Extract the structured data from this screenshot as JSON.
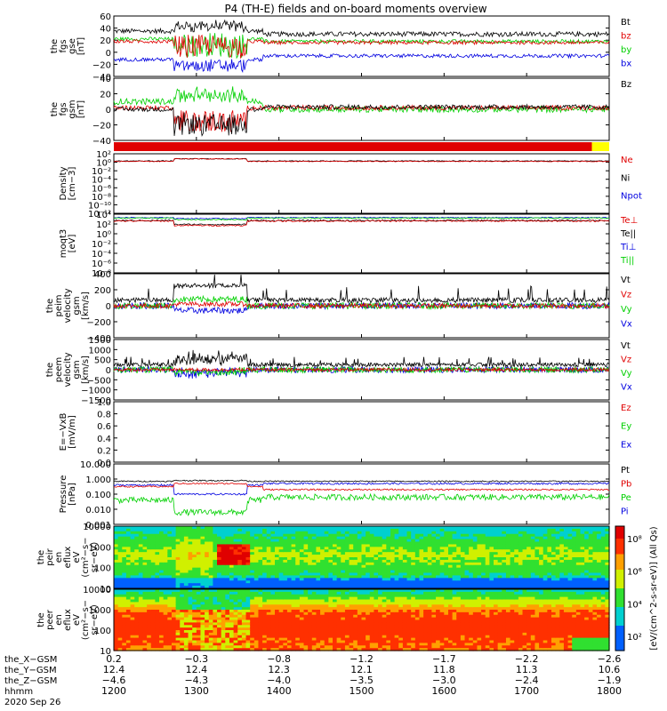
{
  "title": "P4 (TH-E) fields and on-board moments overview",
  "colors": {
    "black": "#000000",
    "red": "#e00000",
    "green": "#00d000",
    "blue": "#0000e0",
    "yellow": "#ffff00",
    "lime": "#3ce83c"
  },
  "chart_data": [
    {
      "type": "line",
      "panel": "fgs-gse",
      "ylabel": [
        "the",
        "fgs",
        "gse",
        "[nT]"
      ],
      "ylim": [
        -40,
        60
      ],
      "ticks": [
        "60",
        "40",
        "20",
        "0",
        "−20",
        "−40"
      ],
      "series": [
        {
          "name": "Bt",
          "color": "#000000"
        },
        {
          "name": "bz",
          "color": "#e00000"
        },
        {
          "name": "by",
          "color": "#00d000"
        },
        {
          "name": "bx",
          "color": "#0000e0"
        }
      ]
    },
    {
      "type": "line",
      "panel": "fgs-gsm",
      "ylabel": [
        "the",
        "fgs",
        "gsm",
        "[nT]"
      ],
      "ylim": [
        -40,
        40
      ],
      "ticks": [
        "40",
        "20",
        "0",
        "−20",
        "−40"
      ],
      "series": [
        {
          "name": "Bz",
          "color": "#000000"
        }
      ]
    },
    {
      "type": "line",
      "panel": "density",
      "ylabel": [
        "Density",
        "[cm−3]"
      ],
      "scale": "log",
      "ticks": [
        "10²",
        "10⁰",
        "10⁻²",
        "10⁻⁴",
        "10⁻⁶",
        "10⁻⁸",
        "10⁻¹⁰",
        "10⁻¹²"
      ],
      "series": [
        {
          "name": "Ne",
          "color": "#e00000"
        },
        {
          "name": "Ni",
          "color": "#000000"
        },
        {
          "name": "Npot",
          "color": "#0000e0"
        }
      ]
    },
    {
      "type": "line",
      "panel": "temperature",
      "ylabel": [
        "moqt3",
        "[eV]"
      ],
      "scale": "log",
      "ticks": [
        "10⁴",
        "10²",
        "10⁰",
        "10⁻²",
        "10⁻⁴",
        "10⁻⁶",
        "10⁻⁸"
      ],
      "series": [
        {
          "name": "Te⊥",
          "color": "#e00000"
        },
        {
          "name": "Te||",
          "color": "#000000"
        },
        {
          "name": "Ti⊥",
          "color": "#0000e0"
        },
        {
          "name": "Ti||",
          "color": "#00d000"
        }
      ]
    },
    {
      "type": "line",
      "panel": "peim-velocity",
      "ylabel": [
        "the",
        "peim",
        "velocity",
        "gsm",
        "[km/s]"
      ],
      "ylim": [
        -400,
        400
      ],
      "ticks": [
        "400",
        "200",
        "0",
        "−200",
        "−400"
      ],
      "series": [
        {
          "name": "Vt",
          "color": "#000000"
        },
        {
          "name": "Vz",
          "color": "#e00000"
        },
        {
          "name": "Vy",
          "color": "#00d000"
        },
        {
          "name": "Vx",
          "color": "#0000e0"
        }
      ]
    },
    {
      "type": "line",
      "panel": "peem-velocity",
      "ylabel": [
        "the",
        "peem",
        "velocity",
        "gsm",
        "[km/s]"
      ],
      "ylim": [
        -1500,
        1500
      ],
      "ticks": [
        "1500",
        "1000",
        "500",
        "0",
        "−500",
        "−1000",
        "−1500"
      ],
      "series": [
        {
          "name": "Vt",
          "color": "#000000"
        },
        {
          "name": "Vz",
          "color": "#e00000"
        },
        {
          "name": "Vy",
          "color": "#00d000"
        },
        {
          "name": "Vx",
          "color": "#0000e0"
        }
      ]
    },
    {
      "type": "line",
      "panel": "efield",
      "ylabel": [
        "E=−VxB",
        "[mV/m]"
      ],
      "ylim": [
        0,
        1
      ],
      "ticks": [
        "1.0",
        "0.8",
        "0.6",
        "0.4",
        "0.2",
        "0.0"
      ],
      "series": [
        {
          "name": "Ez",
          "color": "#e00000"
        },
        {
          "name": "Ey",
          "color": "#00d000"
        },
        {
          "name": "Ex",
          "color": "#0000e0"
        }
      ]
    },
    {
      "type": "line",
      "panel": "pressure",
      "ylabel": [
        "Pressure",
        "[nPa]"
      ],
      "scale": "log",
      "ylim": [
        0.001,
        10
      ],
      "ticks": [
        "10.000",
        "1.000",
        "0.100",
        "0.010",
        "0.001"
      ],
      "series": [
        {
          "name": "Pt",
          "color": "#000000"
        },
        {
          "name": "Pb",
          "color": "#e00000"
        },
        {
          "name": "Pe",
          "color": "#00d000"
        },
        {
          "name": "Pi",
          "color": "#0000e0"
        }
      ]
    },
    {
      "type": "heatmap",
      "panel": "peir-spectrogram",
      "ylabel": [
        "the",
        "peir",
        "en",
        "eflux",
        "eV",
        "(cm²−s−",
        "sr−eV)"
      ],
      "ylim": [
        10,
        10000
      ],
      "ticks": [
        "10000",
        "1000",
        "100",
        "10"
      ]
    },
    {
      "type": "heatmap",
      "panel": "peer-spectrogram",
      "ylabel": [
        "the",
        "peer",
        "en",
        "eflux",
        "eV",
        "(cm²−s−",
        "sr−eV)"
      ],
      "ylim": [
        10,
        10000
      ],
      "ticks": [
        "10000",
        "1000",
        "100",
        "10"
      ],
      "colorbar_label": "[eV/(cm^2-s-sr-eV)] (All Qs)",
      "colorbar_ticks": [
        "10⁸",
        "10⁶",
        "10⁴",
        "10²"
      ]
    }
  ],
  "xaxis": {
    "rows": [
      {
        "label": "the_X−GSM",
        "values": [
          "0.2",
          "−0.3",
          "−0.8",
          "−1.2",
          "−1.7",
          "−2.2",
          "−2.6"
        ]
      },
      {
        "label": "the_Y−GSM",
        "values": [
          "12.4",
          "12.4",
          "12.3",
          "12.1",
          "11.8",
          "11.3",
          "10.6"
        ]
      },
      {
        "label": "the_Z−GSM",
        "values": [
          "−4.6",
          "−4.3",
          "−4.0",
          "−3.5",
          "−3.0",
          "−2.4",
          "−1.9"
        ]
      },
      {
        "label": "hhmm",
        "values": [
          "1200",
          "1300",
          "1400",
          "1500",
          "1600",
          "1700",
          "1800"
        ]
      }
    ],
    "date": "2020 Sep 26"
  }
}
